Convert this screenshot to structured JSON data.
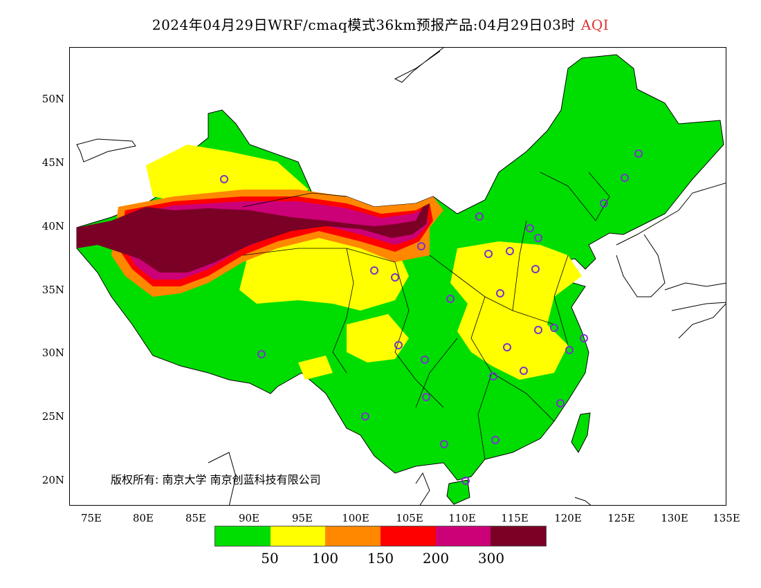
{
  "title": {
    "main": "2024年04月29日WRF/cmaq模式36km预报产品:04月29日03时",
    "variable": "AQI",
    "variable_color": "#e03030"
  },
  "axes": {
    "y_ticks": [
      "50N",
      "45N",
      "40N",
      "35N",
      "30N",
      "25N",
      "20N"
    ],
    "x_ticks": [
      "75E",
      "80E",
      "85E",
      "90E",
      "95E",
      "100E",
      "105E",
      "110E",
      "115E",
      "120E",
      "125E",
      "130E",
      "135E"
    ]
  },
  "copyright": "版权所有: 南京大学 南京创蓝科技有限公司",
  "legend": {
    "colors": [
      "#00dd00",
      "#ffff00",
      "#ff8800",
      "#ff0000",
      "#cc0077",
      "#7a0026"
    ],
    "labels": [
      "50",
      "100",
      "150",
      "200",
      "300"
    ]
  },
  "map": {
    "background": "#ffffff",
    "coastline_color": "#000000",
    "station_marker_color": "#7a33cc",
    "station_count": 31
  }
}
